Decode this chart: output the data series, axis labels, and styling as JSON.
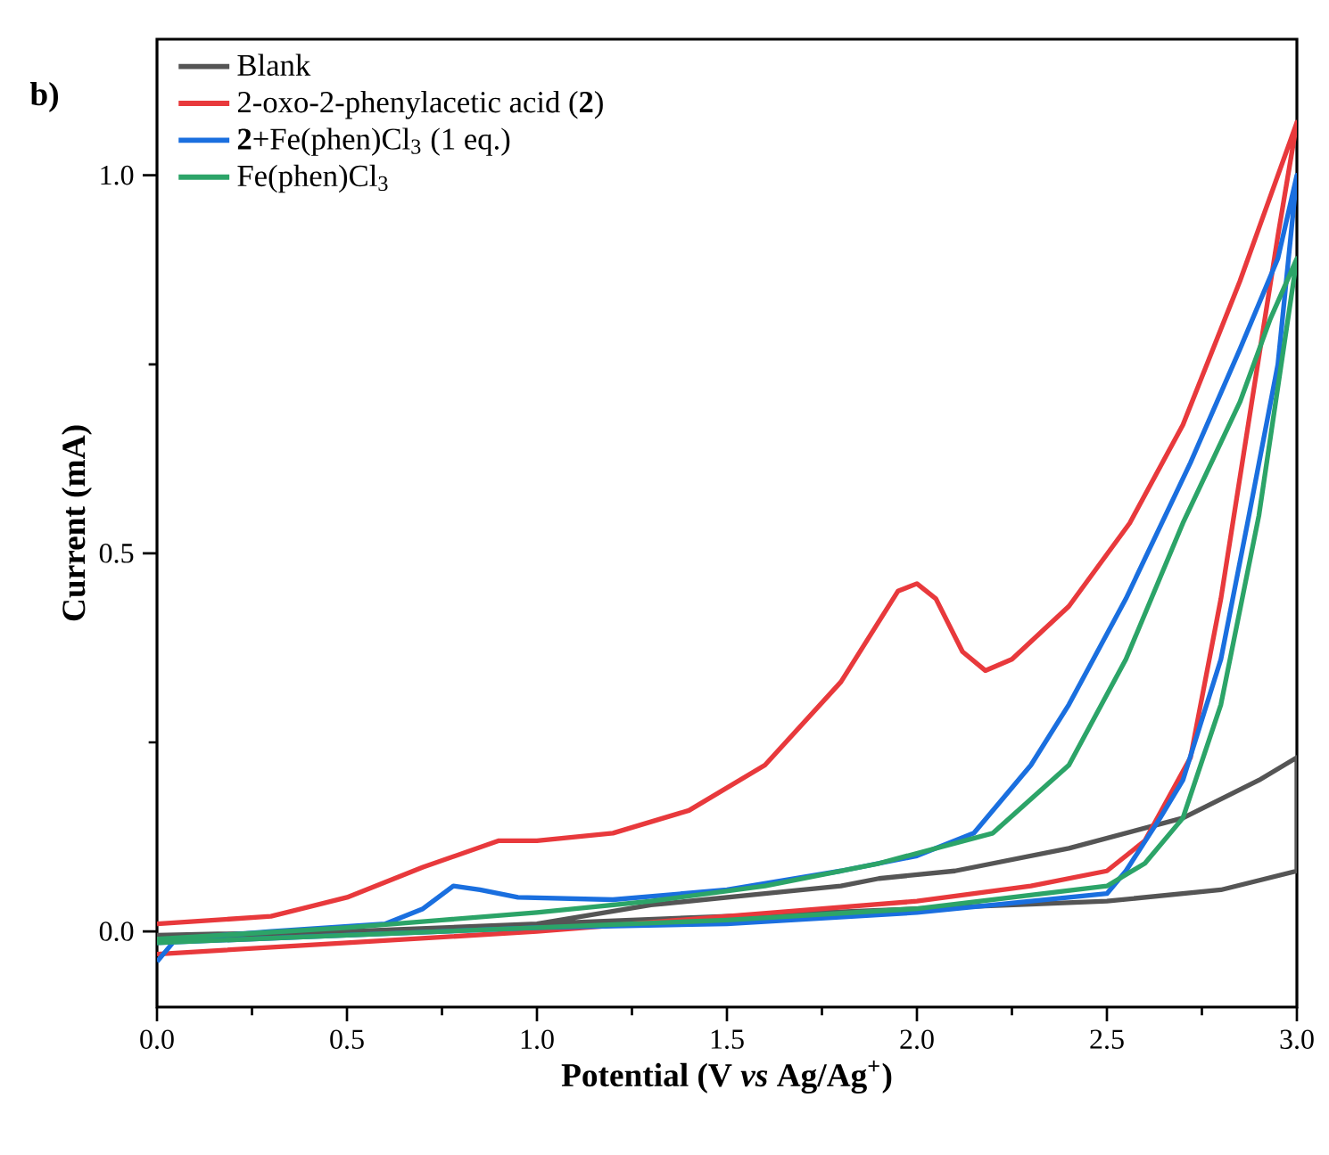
{
  "chart_data": {
    "type": "line",
    "xlabel": "Potential (V *vs* Ag/Ag$^{+}$)",
    "ylabel": "Current (mA)",
    "annotations": [
      "b)"
    ],
    "xlim": [
      0,
      3
    ],
    "ylim": [
      -0.1,
      1.18
    ],
    "xticks": [
      {
        "value": 0,
        "label": "0.0"
      },
      {
        "value": 0.5,
        "label": "0.5"
      },
      {
        "value": 1,
        "label": "1.0"
      },
      {
        "value": 1.5,
        "label": "1.5"
      },
      {
        "value": 2,
        "label": "2.0"
      },
      {
        "value": 2.5,
        "label": "2.5"
      },
      {
        "value": 3,
        "label": "3.0"
      }
    ],
    "yticks": [
      {
        "value": 0,
        "label": "0.0"
      },
      {
        "value": 0.5,
        "label": "0.5"
      },
      {
        "value": 1,
        "label": "1.0"
      }
    ],
    "grid": false,
    "legend": "top left",
    "marker": "none",
    "line_style": "solid",
    "series": [
      {
        "name": "Blank",
        "color": "#555555",
        "x": [
          0,
          0.5,
          1.0,
          1.3,
          1.6,
          1.8,
          1.9,
          2.1,
          2.4,
          2.7,
          2.9,
          3.0,
          3.0,
          2.8,
          2.5,
          2.0,
          1.5,
          1.0,
          0.5,
          0
        ],
        "values": [
          -0.005,
          0.0,
          0.01,
          0.035,
          0.05,
          0.06,
          0.07,
          0.08,
          0.11,
          0.15,
          0.2,
          0.23,
          0.08,
          0.055,
          0.04,
          0.03,
          0.02,
          0.01,
          0.0,
          -0.01
        ]
      },
      {
        "name": "2-oxo-2-phenylacetic acid (**2**)",
        "color": "#e8393c",
        "x": [
          0,
          0.3,
          0.5,
          0.7,
          0.9,
          1.0,
          1.2,
          1.4,
          1.6,
          1.8,
          1.95,
          2.0,
          2.05,
          2.12,
          2.18,
          2.25,
          2.4,
          2.56,
          2.7,
          2.85,
          3.0,
          3.0,
          2.95,
          2.9,
          2.8,
          2.72,
          2.6,
          2.5,
          2.3,
          2.0,
          1.5,
          1.0,
          0.5,
          0
        ],
        "values": [
          0.01,
          0.02,
          0.045,
          0.085,
          0.12,
          0.12,
          0.13,
          0.16,
          0.22,
          0.33,
          0.45,
          0.46,
          0.44,
          0.37,
          0.345,
          0.36,
          0.43,
          0.54,
          0.67,
          0.86,
          1.07,
          1.07,
          0.92,
          0.76,
          0.44,
          0.23,
          0.12,
          0.08,
          0.06,
          0.04,
          0.02,
          0.0,
          -0.015,
          -0.03
        ]
      },
      {
        "name": "**2**+Fe(phen)Cl$_{3}$ (1 eq.)",
        "color": "#1a6fdf",
        "x": [
          0,
          0.05,
          0.3,
          0.6,
          0.7,
          0.78,
          0.85,
          0.95,
          1.2,
          1.5,
          1.8,
          2.0,
          2.15,
          2.3,
          2.4,
          2.55,
          2.72,
          2.85,
          2.95,
          3.0,
          3.0,
          2.95,
          2.87,
          2.8,
          2.7,
          2.64,
          2.55,
          2.5,
          2.0,
          1.5,
          1.0,
          0.5,
          0
        ],
        "values": [
          -0.04,
          -0.01,
          0.0,
          0.01,
          0.03,
          0.06,
          0.055,
          0.045,
          0.042,
          0.055,
          0.08,
          0.1,
          0.13,
          0.22,
          0.3,
          0.44,
          0.62,
          0.77,
          0.89,
          1.0,
          1.0,
          0.75,
          0.54,
          0.36,
          0.2,
          0.15,
          0.08,
          0.05,
          0.025,
          0.01,
          0.005,
          -0.005,
          -0.015
        ]
      },
      {
        "name": "Fe(phen)Cl$_{3}$",
        "color": "#2ca468",
        "x": [
          0,
          0.5,
          0.75,
          1.0,
          1.3,
          1.6,
          1.9,
          2.2,
          2.4,
          2.55,
          2.7,
          2.85,
          2.93,
          3.0,
          3.0,
          2.9,
          2.8,
          2.7,
          2.6,
          2.5,
          2.0,
          1.5,
          1.0,
          0.5,
          0
        ],
        "values": [
          -0.01,
          0.005,
          0.015,
          0.025,
          0.04,
          0.06,
          0.09,
          0.13,
          0.22,
          0.36,
          0.54,
          0.7,
          0.81,
          0.89,
          0.89,
          0.55,
          0.3,
          0.15,
          0.09,
          0.06,
          0.03,
          0.015,
          0.005,
          -0.005,
          -0.015
        ]
      }
    ]
  }
}
